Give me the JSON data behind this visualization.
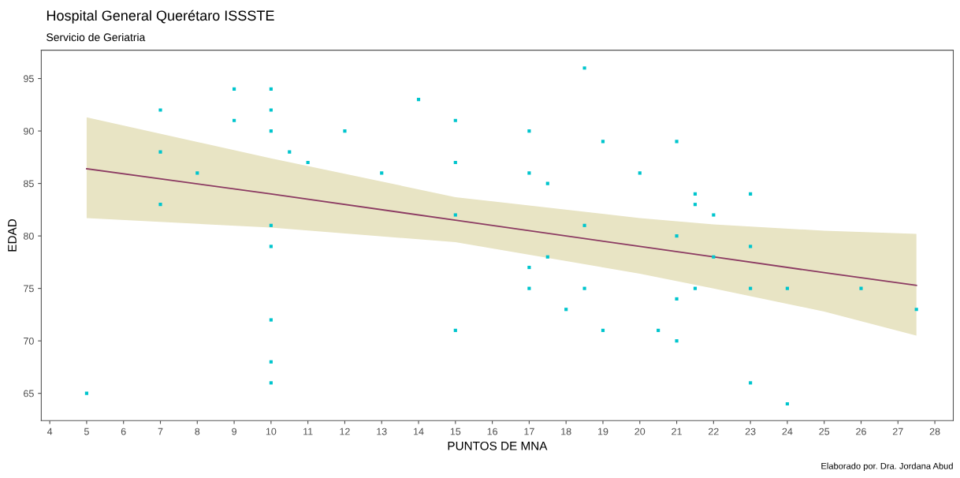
{
  "chart_data": {
    "type": "scatter",
    "title": "Hospital General Querétaro ISSSTE",
    "subtitle": "Servicio de Geriatria",
    "xlabel": "PUNTOS DE MNA",
    "ylabel": "EDAD",
    "annotations": [
      "Elaborado por. Dra. Jordana Abud"
    ],
    "xlim": [
      3.77,
      28.5
    ],
    "ylim": [
      62.4,
      97.7
    ],
    "xticks": [
      4,
      5,
      6,
      7,
      8,
      9,
      10,
      11,
      12,
      13,
      14,
      15,
      16,
      17,
      18,
      19,
      20,
      21,
      22,
      23,
      24,
      25,
      26,
      27,
      28
    ],
    "yticks": [
      65,
      70,
      75,
      80,
      85,
      90,
      95
    ],
    "grid": false,
    "legend": false,
    "marker": "square",
    "series": [
      {
        "color": "#00c5cd",
        "x": [
          5,
          7,
          7,
          7,
          8,
          9,
          9,
          10,
          10,
          10,
          10,
          10,
          10,
          10,
          10,
          10.5,
          11,
          12,
          13,
          14,
          15,
          15,
          15,
          15,
          17,
          17,
          17,
          17,
          17.5,
          17.5,
          18,
          18.5,
          18.5,
          18.5,
          19,
          19,
          20,
          20.5,
          21,
          21,
          21,
          21,
          21.5,
          21.5,
          21.5,
          22,
          22,
          23,
          23,
          23,
          23,
          24,
          24,
          26,
          27.5
        ],
        "values": [
          65,
          92,
          88,
          83,
          86,
          94,
          91,
          94,
          92,
          90,
          81,
          79,
          72,
          68,
          66,
          88,
          87,
          90,
          86,
          93,
          91,
          87,
          82,
          71,
          90,
          86,
          77,
          75,
          85,
          78,
          73,
          96,
          81,
          75,
          89,
          71,
          86,
          71,
          89,
          80,
          74,
          70,
          84,
          83,
          75,
          82,
          78,
          84,
          79,
          75,
          66,
          75,
          64,
          75,
          73
        ]
      },
      {
        "type": "line",
        "color": "#8b3a62",
        "marker": "none",
        "line_style": "solid",
        "x": [
          5,
          10,
          15,
          20,
          22,
          25,
          27.5
        ],
        "values": [
          86.4,
          84.0,
          81.5,
          79.0,
          78.0,
          76.5,
          75.3
        ],
        "lower": [
          81.7,
          80.8,
          79.4,
          76.4,
          75.0,
          72.8,
          70.5
        ],
        "upper": [
          91.3,
          87.4,
          83.7,
          81.7,
          81.1,
          80.5,
          80.2
        ]
      }
    ]
  }
}
